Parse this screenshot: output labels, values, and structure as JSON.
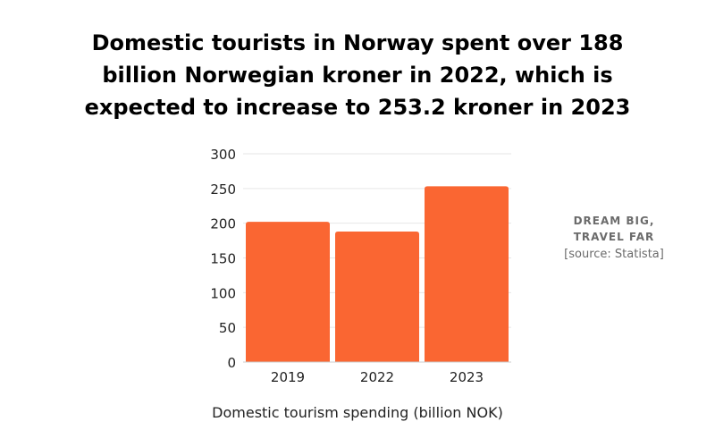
{
  "title_lines": [
    "Domestic tourists in Norway spent over 188",
    "billion Norwegian kroner in 2022, which is",
    "expected to increase to 253.2 kroner in 2023"
  ],
  "branding": {
    "line1": "DREAM BIG,",
    "line2": "TRAVEL FAR",
    "source": "[source: Statista]"
  },
  "colors": {
    "bar": "#FA6632",
    "grid": "#e6e6e6",
    "text": "#222222"
  },
  "chart_data": {
    "type": "bar",
    "title": "Domestic tourists in Norway spent over 188 billion Norwegian kroner in 2022, which is expected to increase to 253.2 kroner in 2023",
    "categories": [
      "2019",
      "2022",
      "2023"
    ],
    "values": [
      202,
      188,
      253.2
    ],
    "xlabel": "Domestic tourism spending (billion NOK)",
    "ylabel": "",
    "ylim": [
      0,
      300
    ],
    "yticks": [
      0,
      50,
      100,
      150,
      200,
      250,
      300
    ],
    "grid": true,
    "legend": "none"
  }
}
